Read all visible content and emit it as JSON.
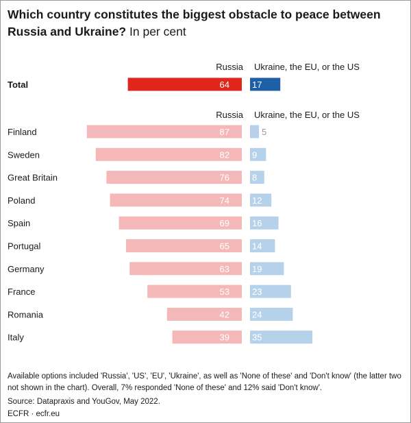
{
  "chart_data": {
    "type": "bar",
    "title": "Which country constitutes the biggest obstacle to peace between Russia and Ukraine?",
    "subtitle": "In per cent",
    "series": [
      {
        "name": "Russia",
        "color": "#e1261c",
        "light_color": "#f4b8b8"
      },
      {
        "name": "Ukraine, the EU, or the US",
        "color": "#1f5fa8",
        "light_color": "#b6d2ea"
      }
    ],
    "total": {
      "label": "Total",
      "russia": 64,
      "ukraine_eu_us": 17
    },
    "categories": [
      "Finland",
      "Sweden",
      "Great Britain",
      "Poland",
      "Spain",
      "Portugal",
      "Germany",
      "France",
      "Romania",
      "Italy"
    ],
    "russia": [
      87,
      82,
      76,
      74,
      69,
      65,
      63,
      53,
      42,
      39
    ],
    "ukraine_eu_us": [
      5,
      9,
      8,
      12,
      16,
      14,
      19,
      23,
      24,
      35
    ]
  },
  "notes": "Available options included 'Russia', 'US', 'EU', 'Ukraine', as well as 'None of these' and 'Don't know' (the latter two not shown in the chart). Overall, 7% responded 'None of these' and 12% said 'Don't know'.",
  "source": "Source: Datapraxis and YouGov, May 2022.",
  "brand": "ECFR · ecfr.eu"
}
